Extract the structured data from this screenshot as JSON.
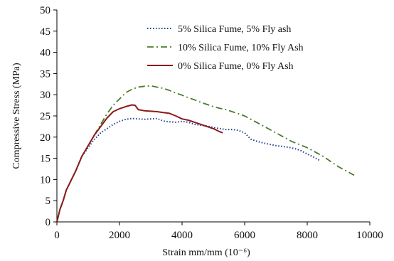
{
  "chart_data": {
    "type": "line",
    "xlabel": "Strain mm/mm (10⁻⁶)",
    "ylabel": "Compressive Stress (MPa)",
    "xlim": [
      0,
      10000
    ],
    "ylim": [
      0,
      50
    ],
    "x_ticks": [
      0,
      2000,
      4000,
      6000,
      8000,
      10000
    ],
    "y_ticks": [
      0,
      5,
      10,
      15,
      20,
      25,
      30,
      35,
      40,
      45,
      50
    ],
    "x_tick_labels": [
      "0",
      "2000",
      "4000",
      "6000",
      "8000",
      "10000"
    ],
    "y_tick_labels": [
      "0",
      "5",
      "10",
      "15",
      "20",
      "25",
      "30",
      "35",
      "40",
      "45",
      "50"
    ],
    "grid": false,
    "legend_position": "top-right",
    "series": [
      {
        "name": "5% Silica Fume, 5% Fly ash",
        "color": "#1f3a93",
        "style": "dotted",
        "x": [
          0,
          100,
          200,
          300,
          400,
          600,
          800,
          1000,
          1200,
          1400,
          1600,
          1800,
          2000,
          2200,
          2400,
          2600,
          2800,
          3000,
          3200,
          3400,
          3600,
          3800,
          4000,
          4200,
          4400,
          4600,
          4800,
          5000,
          5200,
          5400,
          5600,
          5800,
          6000,
          6200,
          6400,
          6600,
          6800,
          7000,
          7200,
          7400,
          7600,
          7800,
          8000,
          8200,
          8400
        ],
        "y": [
          0,
          3,
          5,
          7.5,
          9,
          12,
          15.5,
          17.5,
          19.5,
          21,
          22,
          23,
          23.7,
          24.2,
          24.4,
          24.3,
          24.2,
          24.3,
          24.4,
          23.8,
          23.6,
          23.5,
          23.7,
          23.5,
          23,
          22.8,
          22.6,
          22.3,
          22,
          21.8,
          21.8,
          21.6,
          21,
          19.5,
          19,
          18.6,
          18.3,
          18,
          17.8,
          17.6,
          17.3,
          16.8,
          16,
          15.3,
          14.5
        ]
      },
      {
        "name": "10% Silica Fume, 10% Fly Ash",
        "color": "#4a7c2e",
        "style": "dashdot",
        "x": [
          0,
          100,
          200,
          300,
          400,
          600,
          800,
          1000,
          1200,
          1400,
          1600,
          1800,
          2000,
          2200,
          2400,
          2600,
          2800,
          3000,
          3200,
          3400,
          3600,
          3800,
          4000,
          4200,
          4400,
          4600,
          4800,
          5000,
          5200,
          5400,
          5600,
          5800,
          6000,
          6500,
          7000,
          7500,
          8000,
          8500,
          9000,
          9500
        ],
        "y": [
          0,
          3,
          5,
          7.5,
          9,
          12,
          15.5,
          18,
          20.5,
          23,
          25.5,
          27.5,
          29,
          30.5,
          31.3,
          31.8,
          32,
          32.1,
          31.8,
          31.5,
          31,
          30.4,
          29.9,
          29.3,
          28.8,
          28.2,
          27.7,
          27.2,
          26.8,
          26.5,
          26,
          25.5,
          25,
          23,
          21,
          19,
          17.5,
          15.5,
          13,
          11
        ]
      },
      {
        "name": "0% Silica Fume, 0% Fly Ash",
        "color": "#8b1a1a",
        "style": "solid",
        "x": [
          0,
          100,
          200,
          300,
          400,
          600,
          800,
          1000,
          1200,
          1400,
          1600,
          1800,
          2000,
          2200,
          2400,
          2500,
          2600,
          2800,
          3000,
          3200,
          3400,
          3600,
          3800,
          4000,
          4200,
          4400,
          4600,
          4800,
          5000,
          5200,
          5300
        ],
        "y": [
          0,
          3,
          5,
          7.5,
          9,
          12,
          15.5,
          18,
          20.5,
          22.5,
          24.5,
          26,
          26.7,
          27.2,
          27.6,
          27.5,
          26.5,
          26.2,
          26.1,
          26,
          25.8,
          25.6,
          25,
          24.3,
          24,
          23.5,
          23,
          22.5,
          22,
          21.3,
          21
        ]
      }
    ]
  }
}
